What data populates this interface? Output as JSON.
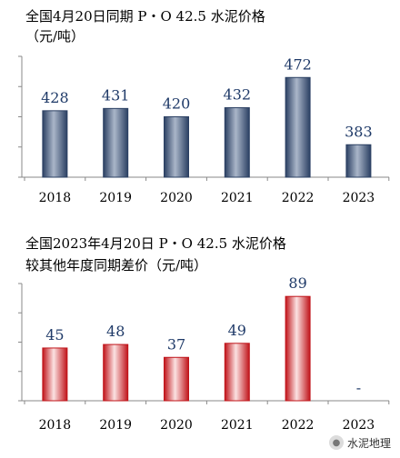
{
  "chart_data": [
    {
      "type": "bar",
      "title_lines": [
        "全国4月20日同期 P・O 42.5 水泥价格",
        "（元/吨）"
      ],
      "categories": [
        "2018",
        "2019",
        "2020",
        "2021",
        "2022",
        "2023"
      ],
      "values": [
        428,
        431,
        420,
        432,
        472,
        383
      ],
      "value_labels": [
        "428",
        "431",
        "420",
        "432",
        "472",
        "383"
      ],
      "bar_color": "#2b4063",
      "bar_highlight": "#aab6c9",
      "label_color": "#1f3a68",
      "ylim": [
        340,
        500
      ],
      "grid": false
    },
    {
      "type": "bar",
      "title_lines": [
        "全国2023年4月20日 P・O 42.5 水泥价格",
        "较其他年度同期差价（元/吨）"
      ],
      "categories": [
        "2018",
        "2019",
        "2020",
        "2021",
        "2022",
        "2023"
      ],
      "values": [
        45,
        48,
        37,
        49,
        89,
        0
      ],
      "value_labels": [
        "45",
        "48",
        "37",
        "49",
        "89",
        "-"
      ],
      "bar_color": "#c0141a",
      "bar_highlight": "#fbe2e2",
      "label_color": "#1f3a68",
      "ylim": [
        0,
        100
      ],
      "grid": false
    }
  ],
  "watermark": {
    "text": "水泥地理",
    "icon": "wechat-icon"
  }
}
